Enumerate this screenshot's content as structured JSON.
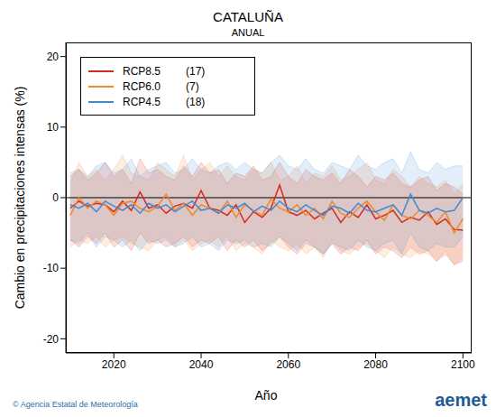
{
  "chart_data": {
    "type": "line",
    "title": "CATALUÑA",
    "subtitle": "ANUAL",
    "x_label": "Año",
    "y_label": "Cambio en precipitaciones intensas (%)",
    "credit": "© Agencia Estatal de Meteorología",
    "logo": "aemet",
    "reference_line": 0,
    "xlim": [
      2009,
      2102
    ],
    "xticks": [
      2020,
      2040,
      2060,
      2080,
      2100
    ],
    "ylim": [
      -22,
      22
    ],
    "yticks": [
      -20,
      -10,
      0,
      10,
      20
    ],
    "legend": "upper left",
    "x": [
      2010,
      2012,
      2014,
      2016,
      2018,
      2020,
      2022,
      2024,
      2026,
      2028,
      2030,
      2032,
      2034,
      2036,
      2038,
      2040,
      2042,
      2044,
      2046,
      2048,
      2050,
      2052,
      2054,
      2056,
      2058,
      2060,
      2062,
      2064,
      2066,
      2068,
      2070,
      2072,
      2074,
      2076,
      2078,
      2080,
      2082,
      2084,
      2086,
      2088,
      2090,
      2092,
      2094,
      2096,
      2098,
      2100
    ],
    "series": [
      {
        "name": "RCP8.5",
        "models": 17,
        "color": "#d42a20",
        "values": [
          -1.5,
          -0.5,
          -1.2,
          -0.8,
          -1.0,
          -2.0,
          -0.5,
          -1.8,
          0.8,
          -1.5,
          -1.0,
          -2.2,
          -1.2,
          -0.8,
          -1.5,
          1.0,
          -1.5,
          -1.8,
          -2.5,
          -1.0,
          -3.5,
          -2.0,
          -2.8,
          -1.5,
          1.8,
          -2.0,
          -2.5,
          -1.8,
          -3.0,
          -2.2,
          -1.5,
          -3.5,
          -2.0,
          -2.8,
          -1.0,
          -3.0,
          -2.5,
          -1.8,
          -3.5,
          -2.8,
          -3.2,
          -2.0,
          -3.8,
          -3.0,
          -4.5,
          -4.6
        ],
        "low": [
          -6,
          -7,
          -5.5,
          -6.5,
          -5,
          -7,
          -6,
          -7.5,
          -5,
          -6.5,
          -6,
          -7,
          -6.5,
          -5.5,
          -7,
          -6,
          -6.5,
          -5.5,
          -7.5,
          -6,
          -7,
          -6,
          -7.5,
          -6.5,
          -5.5,
          -7,
          -8,
          -6.5,
          -7,
          -8,
          -6.5,
          -8,
          -7,
          -7.5,
          -6,
          -8,
          -7,
          -7.5,
          -8.5,
          -7,
          -8,
          -7.5,
          -9,
          -8,
          -9.5,
          -9
        ],
        "high": [
          3,
          4,
          2.5,
          3.5,
          5,
          3,
          4,
          2,
          5.5,
          3.5,
          4,
          3,
          2.5,
          4.5,
          3,
          5,
          3.5,
          4,
          2,
          3.5,
          3,
          4.5,
          2.5,
          3,
          5,
          3,
          2,
          4,
          3,
          2.5,
          3.5,
          2,
          4,
          3,
          1.5,
          3,
          2.5,
          3.5,
          2,
          1.5,
          2.5,
          3,
          1,
          2,
          1.5,
          0.5
        ]
      },
      {
        "name": "RCP6.0",
        "models": 7,
        "color": "#f0882c",
        "values": [
          -2.5,
          0.0,
          -1.5,
          -0.5,
          -1.0,
          -2.5,
          -0.8,
          -0.5,
          -1.5,
          -2.0,
          -1.2,
          0.5,
          -1.8,
          -0.8,
          -2.5,
          -1.0,
          -1.5,
          -2.2,
          -0.5,
          -2.8,
          -1.0,
          -1.8,
          -2.5,
          -0.2,
          -1.5,
          -2.0,
          -1.0,
          -2.5,
          -1.5,
          -3.0,
          -0.5,
          -2.2,
          -2.8,
          -1.5,
          -0.5,
          -2.0,
          -3.2,
          -1.0,
          -2.5,
          -3.0,
          -1.8,
          -2.5,
          -3.5,
          -2.0,
          -5.0,
          -3.0
        ],
        "low": [
          -7,
          -6,
          -6.5,
          -5.5,
          -7,
          -6,
          -5.5,
          -6.5,
          -7,
          -7.5,
          -6,
          -5.5,
          -7,
          -6,
          -7.5,
          -6.5,
          -6,
          -7,
          -5.5,
          -7.5,
          -6.5,
          -7,
          -8,
          -6,
          -7,
          -7.5,
          -6.5,
          -8,
          -7,
          -8.5,
          -6,
          -7.5,
          -8,
          -7,
          -6.5,
          -7.5,
          -8.5,
          -7,
          -8,
          -8.5,
          -7.5,
          -8,
          -9,
          -7.5,
          -9.5,
          -8.5
        ],
        "high": [
          2,
          5,
          3,
          4,
          2.5,
          4,
          6,
          3.5,
          3,
          2.5,
          5,
          4,
          3,
          6,
          2.5,
          4,
          5,
          3,
          4.5,
          3,
          2.5,
          4,
          3.5,
          5,
          2.5,
          3,
          4.5,
          2,
          3.5,
          3,
          4.5,
          2.5,
          3,
          4,
          5,
          2.5,
          2,
          4,
          3,
          1.5,
          3,
          2,
          1.5,
          2.5,
          0.5,
          2
        ]
      },
      {
        "name": "RCP4.5",
        "models": 18,
        "color": "#3c8cd8",
        "values": [
          -1.0,
          -1.5,
          -0.8,
          -2.0,
          -0.5,
          -1.2,
          -1.8,
          -1.0,
          -2.2,
          -0.8,
          -1.5,
          -1.0,
          -2.0,
          -1.2,
          -0.5,
          -1.8,
          -1.5,
          -2.2,
          -1.0,
          -1.5,
          -0.8,
          -2.0,
          -1.2,
          -1.8,
          -0.5,
          -1.5,
          -2.0,
          -1.0,
          -1.8,
          -2.5,
          -1.2,
          -1.5,
          -2.2,
          -0.8,
          -1.8,
          -2.0,
          -1.5,
          -1.0,
          -2.5,
          0.5,
          -1.8,
          -2.2,
          -1.5,
          -2.0,
          -1.8,
          0.0
        ],
        "low": [
          -6,
          -6.5,
          -5,
          -7,
          -5.5,
          -6,
          -7,
          -6,
          -7.5,
          -6,
          -6.5,
          -6,
          -7,
          -6.5,
          -5.5,
          -7,
          -6.5,
          -7.5,
          -6,
          -6.5,
          -6,
          -7,
          -6.5,
          -7,
          -5.5,
          -6.5,
          -7.5,
          -6,
          -7,
          -8,
          -6.5,
          -7,
          -7.5,
          -6,
          -7,
          -7.5,
          -6.5,
          -6,
          -8,
          -5,
          -7,
          -7.5,
          -6.5,
          -7,
          -7,
          -5.5
        ],
        "high": [
          3.5,
          4,
          3,
          4.5,
          5,
          3.5,
          4,
          5.5,
          3,
          4,
          4.5,
          5,
          3.5,
          4,
          5.5,
          4,
          3.5,
          4.5,
          5,
          4,
          5,
          4,
          3.5,
          5,
          6,
          4.5,
          4,
          5.5,
          4,
          3.5,
          5,
          4.5,
          4,
          6,
          4.5,
          4,
          5,
          5.5,
          3.5,
          6.5,
          4,
          3.5,
          5,
          4,
          4.5,
          4.5
        ]
      }
    ]
  }
}
